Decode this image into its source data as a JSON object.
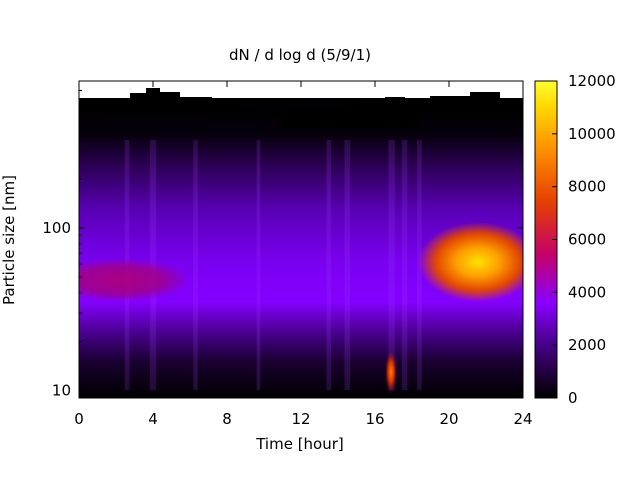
{
  "chart_data": {
    "type": "heatmap",
    "title": "dN / d log d (5/9/1)",
    "xlabel": "Time [hour]",
    "ylabel": "Particle size [nm]",
    "xlim": [
      0,
      24
    ],
    "ylim": [
      9,
      800
    ],
    "y_scale": "log",
    "x_ticks": [
      0,
      4,
      8,
      12,
      16,
      20,
      24
    ],
    "y_ticks": [
      10,
      100
    ],
    "colorbar": {
      "range": [
        0,
        12000
      ],
      "ticks": [
        0,
        2000,
        4000,
        6000,
        8000,
        10000,
        12000
      ],
      "colormap": [
        "#000000",
        "#4b0082",
        "#8a00ff",
        "#c4006a",
        "#e65a00",
        "#ffc000",
        "#ffff33"
      ]
    },
    "features": [
      {
        "time_range": [
          0,
          6
        ],
        "size_nm": 50,
        "peak": 4500
      },
      {
        "time_range": [
          16.5,
          17
        ],
        "size_nm": 11,
        "peak": 8000
      },
      {
        "time_range": [
          19.5,
          24
        ],
        "size_nm": 65,
        "peak": 10500
      }
    ]
  }
}
